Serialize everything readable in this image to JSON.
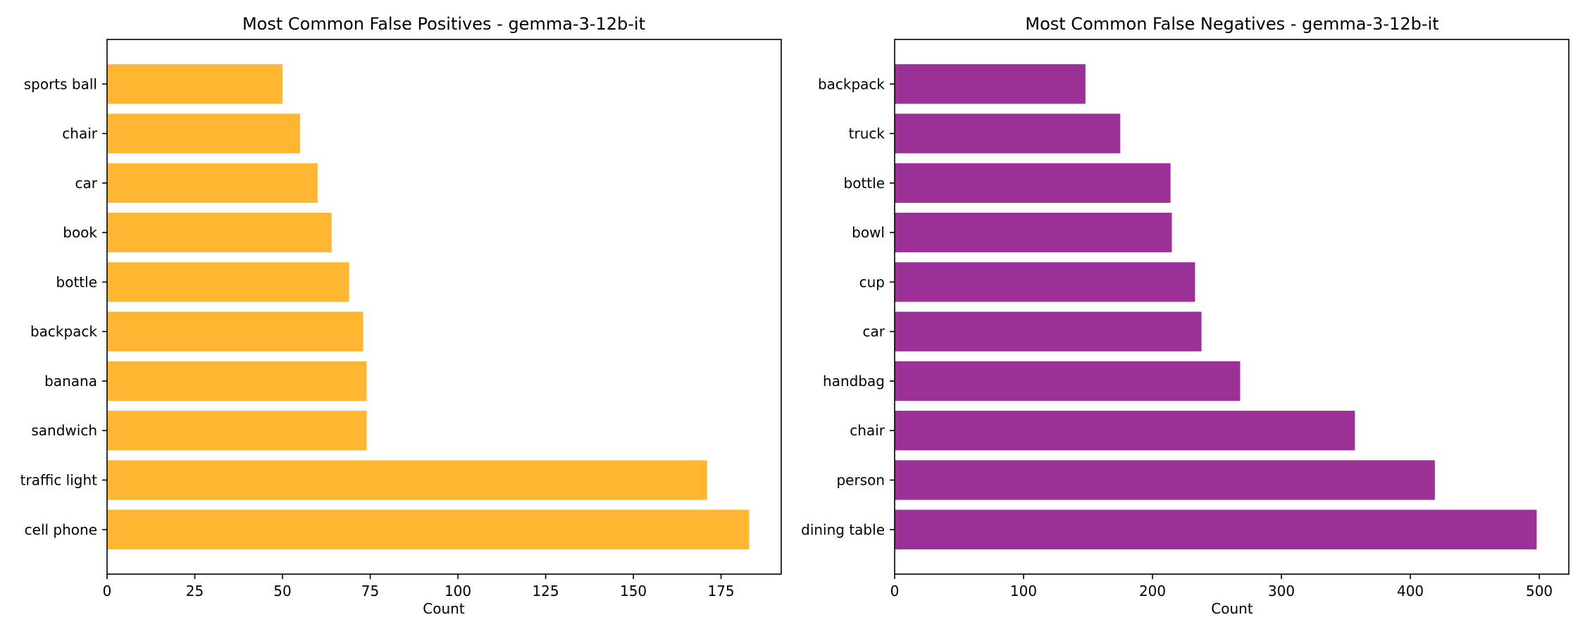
{
  "chart_data": [
    {
      "type": "bar",
      "orientation": "horizontal",
      "title": "Most Common False Positives - gemma-3-12b-it",
      "xlabel": "Count",
      "ylabel": "",
      "categories": [
        "cell phone",
        "traffic light",
        "sandwich",
        "banana",
        "backpack",
        "bottle",
        "book",
        "car",
        "chair",
        "sports ball"
      ],
      "values": [
        183,
        171,
        74,
        74,
        73,
        69,
        64,
        60,
        55,
        50
      ],
      "xlim": [
        0,
        192.15
      ],
      "xticks": [
        0,
        25,
        50,
        75,
        100,
        125,
        150,
        175
      ],
      "color": "#FFB732",
      "grid": false
    },
    {
      "type": "bar",
      "orientation": "horizontal",
      "title": "Most Common False Negatives - gemma-3-12b-it",
      "xlabel": "Count",
      "ylabel": "",
      "categories": [
        "dining table",
        "person",
        "chair",
        "handbag",
        "car",
        "cup",
        "bowl",
        "bottle",
        "truck",
        "backpack"
      ],
      "values": [
        498,
        419,
        357,
        268,
        238,
        233,
        215,
        214,
        175,
        148
      ],
      "xlim": [
        0,
        522.9
      ],
      "xticks": [
        0,
        100,
        200,
        300,
        400,
        500
      ],
      "color": "#9B3096",
      "grid": false
    }
  ]
}
